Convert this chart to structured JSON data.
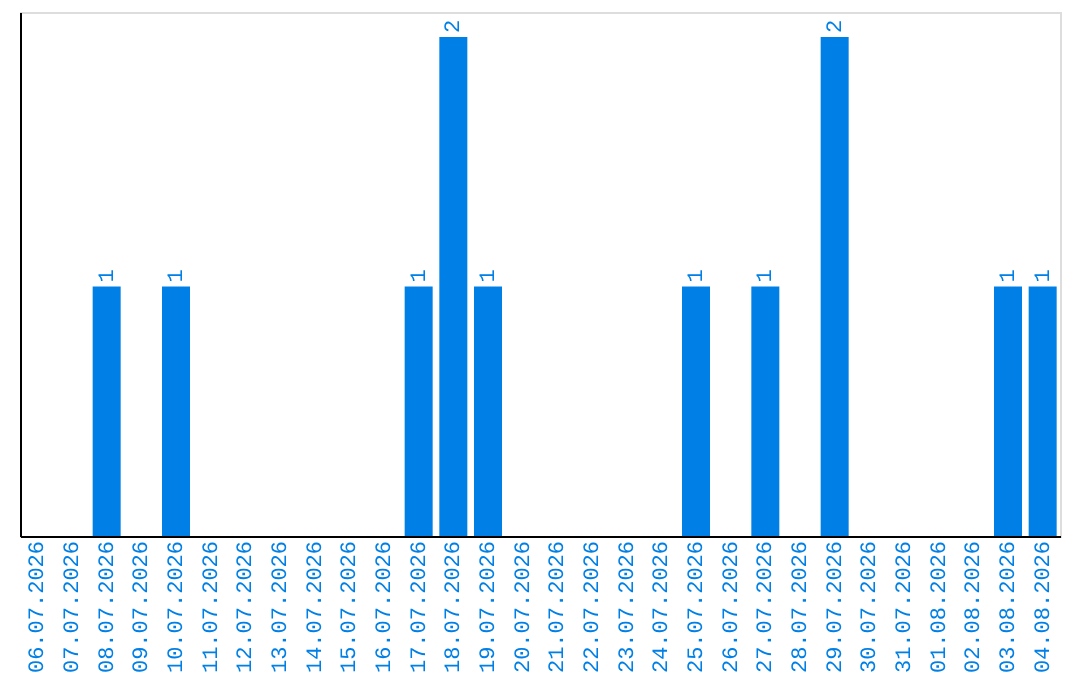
{
  "chart_data": {
    "type": "bar",
    "categories": [
      "06.07.2026",
      "07.07.2026",
      "08.07.2026",
      "09.07.2026",
      "10.07.2026",
      "11.07.2026",
      "12.07.2026",
      "13.07.2026",
      "14.07.2026",
      "15.07.2026",
      "16.07.2026",
      "17.07.2026",
      "18.07.2026",
      "19.07.2026",
      "20.07.2026",
      "21.07.2026",
      "22.07.2026",
      "23.07.2026",
      "24.07.2026",
      "25.07.2026",
      "26.07.2026",
      "27.07.2026",
      "28.07.2026",
      "29.07.2026",
      "30.07.2026",
      "31.07.2026",
      "01.08.2026",
      "02.08.2026",
      "03.08.2026",
      "04.08.2026"
    ],
    "values": [
      0,
      0,
      1,
      0,
      1,
      0,
      0,
      0,
      0,
      0,
      0,
      1,
      2,
      1,
      0,
      0,
      0,
      0,
      0,
      1,
      0,
      1,
      0,
      2,
      0,
      0,
      0,
      0,
      1,
      1
    ],
    "value_labels": [
      null,
      null,
      "1",
      null,
      "1",
      null,
      null,
      null,
      null,
      null,
      null,
      "1",
      "2",
      "1",
      null,
      null,
      null,
      null,
      null,
      "1",
      null,
      "1",
      null,
      "2",
      null,
      null,
      null,
      null,
      "1",
      "1"
    ],
    "color": "#0080e6",
    "ylim": [
      0,
      2.1
    ],
    "tick_labels": "x",
    "grid": false
  }
}
